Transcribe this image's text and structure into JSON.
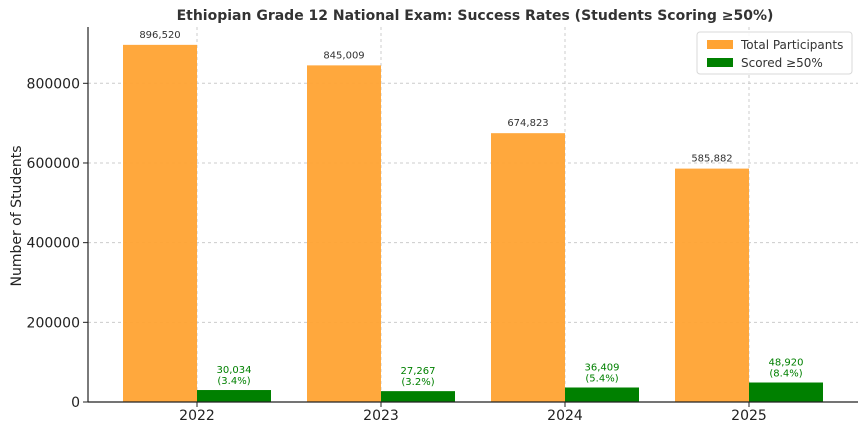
{
  "chart_data": {
    "type": "bar",
    "title": "Ethiopian Grade 12 National Exam: Success Rates (Students Scoring ≥50%)",
    "xlabel": "",
    "ylabel": "Number of Students",
    "categories": [
      "2022",
      "2023",
      "2024",
      "2025"
    ],
    "series": [
      {
        "name": "Total Participants",
        "color": "#FFA333",
        "values": [
          896520,
          845009,
          674823,
          585882
        ],
        "labels": [
          "896,520",
          "845,009",
          "674,823",
          "585,882"
        ]
      },
      {
        "name": "Scored ≥50%",
        "color": "#008000",
        "values": [
          30034,
          27267,
          36409,
          48920
        ],
        "labels": [
          "30,034",
          "27,267",
          "36,409",
          "48,920"
        ],
        "percent_labels": [
          "(3.4%)",
          "(3.2%)",
          "(5.4%)",
          "(8.4%)"
        ]
      }
    ],
    "yticks": [
      0,
      200000,
      400000,
      600000,
      800000
    ],
    "ytick_labels": [
      "0",
      "200000",
      "400000",
      "600000",
      "800000"
    ],
    "ylim": [
      0,
      941346
    ],
    "grid": true,
    "legend_position": "top-right"
  }
}
